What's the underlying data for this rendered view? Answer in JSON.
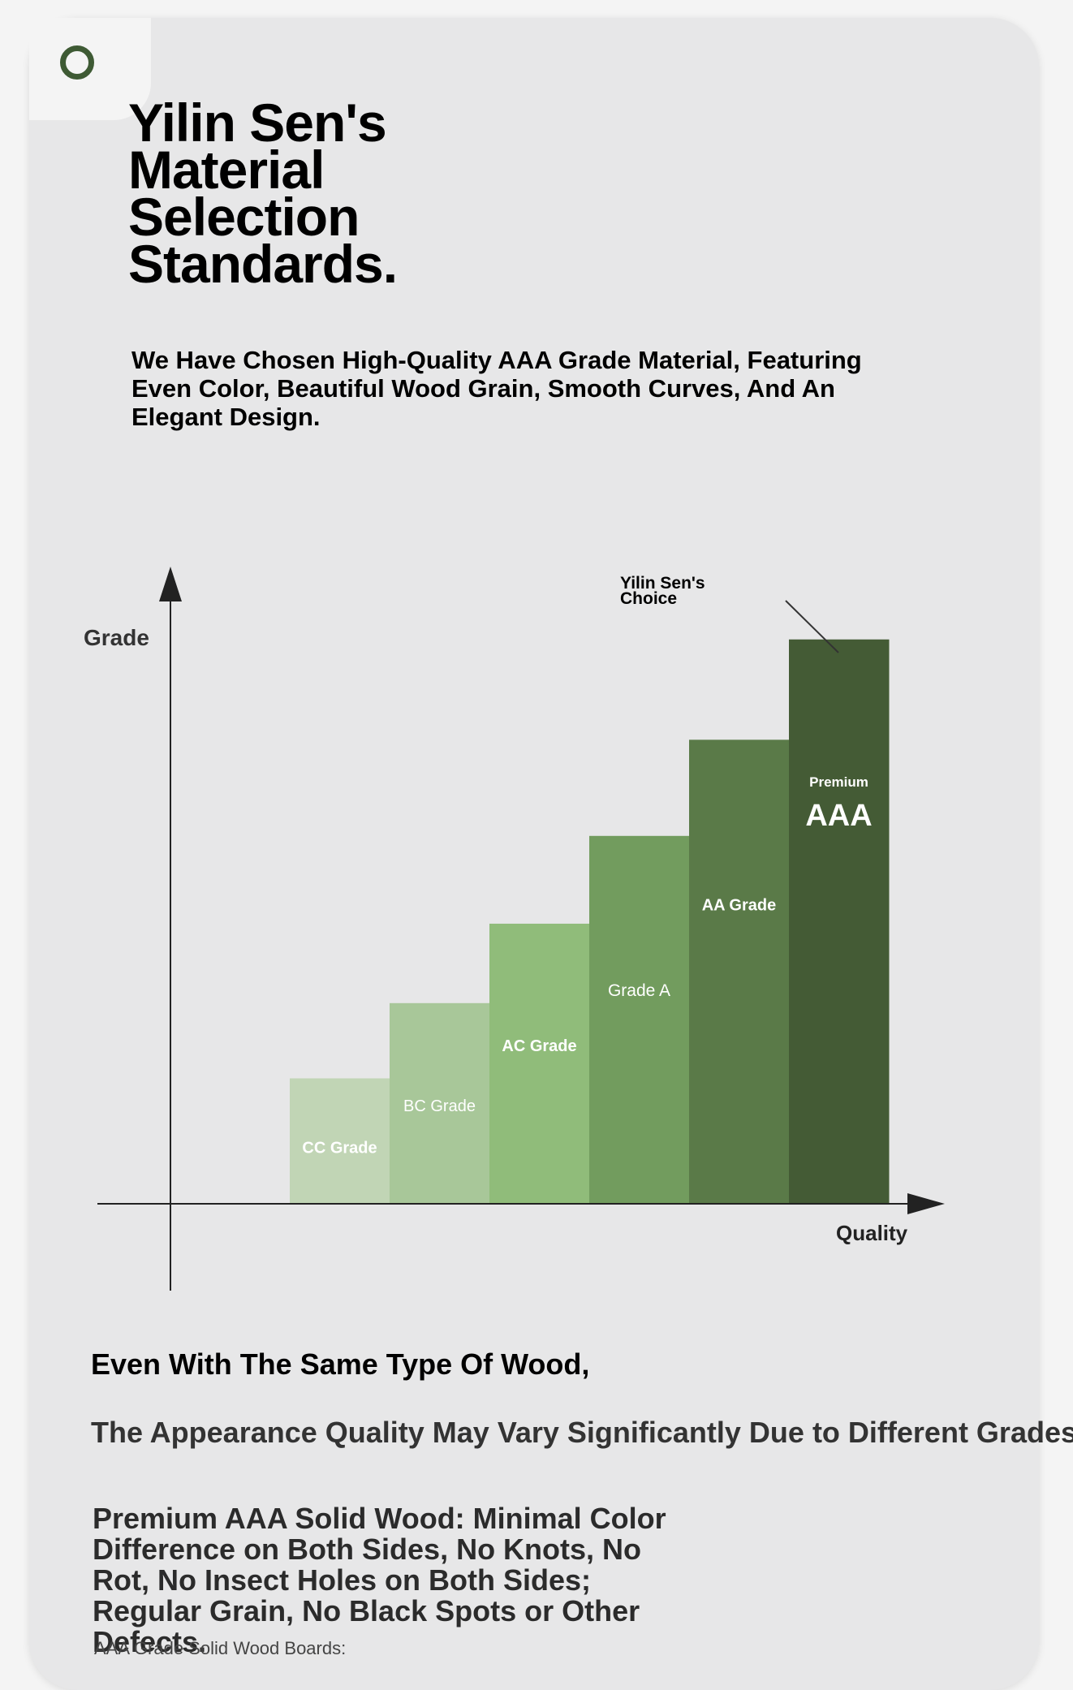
{
  "page": {
    "title": "Yilin Sen's Material Selection Standards.",
    "subtitle": "We Have Chosen High-Quality AAA Grade Material, Featuring Even Color, Beautiful Wood Grain, Smooth Curves, And An Elegant Design.",
    "line1": "Even With The Same Type Of Wood,",
    "line2": "The Appearance Quality May Vary Significantly Due to Different Grades.",
    "paragraph": "Premium AAA Solid Wood: Minimal Color Difference on Both Sides, No Knots, No Rot, No Insect Holes on Both Sides; Regular Grain, No Black Spots or Other Defects.",
    "caption": "AAA Grade Solid Wood Boards:"
  },
  "colors": {
    "accent": "#3e5a34",
    "card": "#e7e7e8",
    "axis": "#222222"
  },
  "icons": {
    "corner": "ring-icon"
  },
  "chart_data": {
    "type": "bar",
    "xlabel": "Quality",
    "ylabel": "Grade",
    "categories": [
      "CC Grade",
      "BC Grade",
      "AC Grade",
      "Grade A",
      "AA Grade",
      "AAA"
    ],
    "bar_labels": [
      "CC Grade",
      "BC Grade",
      "AC Grade",
      "Grade A",
      "AA Grade",
      "AAA"
    ],
    "bar_sublabels": [
      "",
      "",
      "",
      "",
      "",
      "Premium"
    ],
    "values": [
      1.5,
      2.4,
      3.35,
      4.4,
      5.55,
      6.75
    ],
    "ylim": [
      0,
      9
    ],
    "bar_colors": [
      "#c1d5b5",
      "#a8c799",
      "#90bc7a",
      "#729c5e",
      "#5a7a48",
      "#445b35"
    ],
    "label_colors": [
      "#ffffff",
      "#ffffff",
      "#ffffff",
      "#ffffff",
      "#ffffff",
      "#ffffff"
    ],
    "annotation": {
      "text": "Yilin Sen's Choice",
      "target": "AAA"
    },
    "grid": false,
    "legend": "none"
  }
}
